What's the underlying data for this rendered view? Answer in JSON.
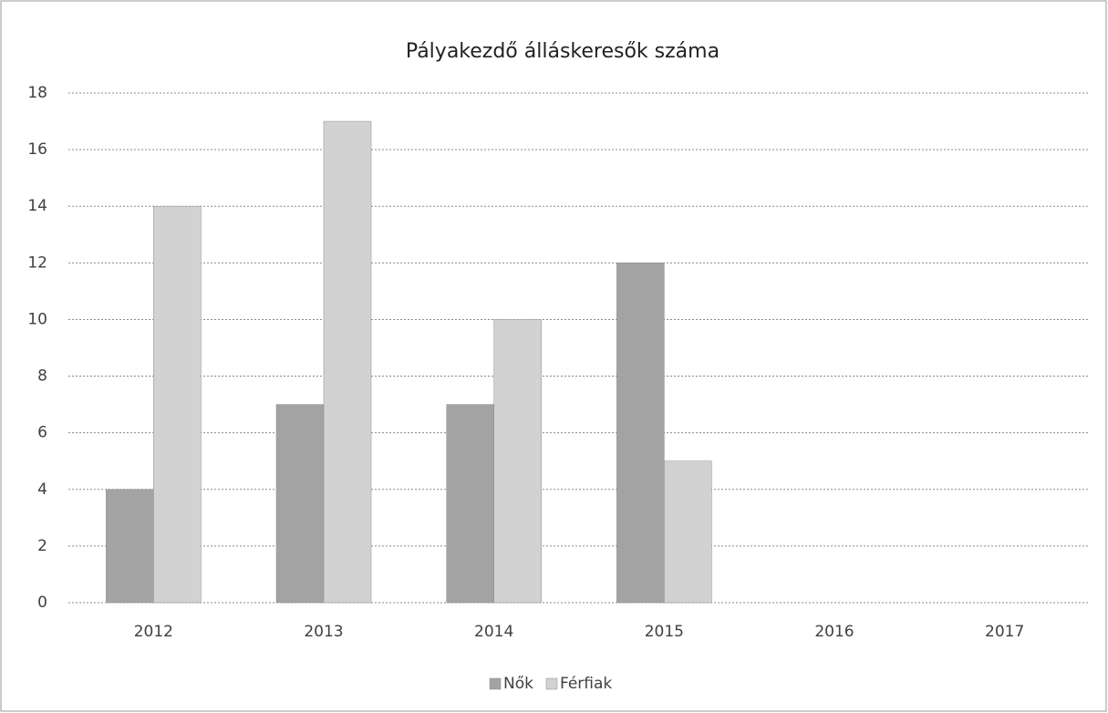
{
  "chart_data": {
    "type": "bar",
    "title": "Pályakezdő álláskeresők száma",
    "categories": [
      "2012",
      "2013",
      "2014",
      "2015",
      "2016",
      "2017"
    ],
    "series": [
      {
        "name": "Nők",
        "color": "#a3a3a3",
        "values": [
          4,
          7,
          7,
          12,
          null,
          null
        ]
      },
      {
        "name": "Férfiak",
        "color": "#d2d2d2",
        "values": [
          14,
          17,
          10,
          5,
          null,
          null
        ]
      }
    ],
    "ylim": [
      0,
      18
    ],
    "yticks": [
      0,
      2,
      4,
      6,
      8,
      10,
      12,
      14,
      16,
      18
    ],
    "grid": true,
    "legend": "bottom"
  }
}
